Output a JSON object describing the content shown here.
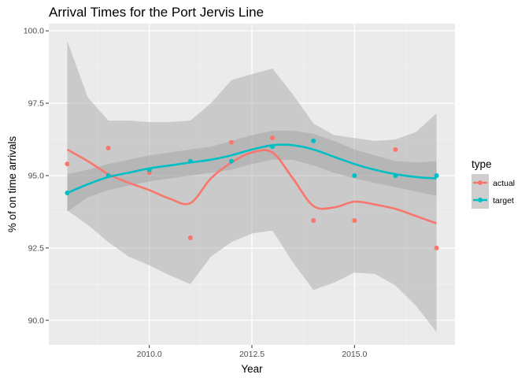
{
  "chart_data": {
    "type": "scatter",
    "title": "Arrival Times for the Port Jervis Line",
    "xlabel": "Year",
    "ylabel": "% of on time arrivals",
    "xlim": [
      2007.55,
      2017.45
    ],
    "ylim": [
      89.15,
      100.25
    ],
    "x_ticks": [
      2010,
      2012.5,
      2015
    ],
    "x_tick_labels": [
      "2010.0",
      "2012.5",
      "2015.0"
    ],
    "y_ticks": [
      90,
      92.5,
      95,
      97.5,
      100
    ],
    "y_tick_labels": [
      "90.0",
      "92.5",
      "95.0",
      "97.5",
      "100.0"
    ],
    "grid": true,
    "legend": {
      "title": "type",
      "position": "right"
    },
    "series": [
      {
        "name": "actual",
        "color": "#F8766D",
        "points": {
          "x": [
            2008,
            2009,
            2010,
            2011,
            2012,
            2013,
            2014,
            2015,
            2016,
            2017
          ],
          "y": [
            95.4,
            95.95,
            95.1,
            92.85,
            96.15,
            96.3,
            93.45,
            93.45,
            95.9,
            92.5
          ]
        },
        "smooth": {
          "x": [
            2008,
            2008.5,
            2009,
            2009.5,
            2010,
            2010.5,
            2011,
            2011.5,
            2012,
            2012.5,
            2013,
            2013.5,
            2014,
            2014.5,
            2015,
            2015.5,
            2016,
            2016.5,
            2017
          ],
          "y": [
            95.9,
            95.5,
            95.05,
            94.75,
            94.5,
            94.2,
            94.05,
            94.9,
            95.45,
            95.8,
            95.8,
            94.9,
            93.95,
            93.9,
            94.1,
            94.0,
            93.85,
            93.6,
            93.35
          ],
          "lower": [
            93.8,
            93.3,
            92.7,
            92.2,
            91.9,
            91.55,
            91.25,
            92.2,
            92.7,
            93.0,
            93.1,
            92.0,
            91.05,
            91.3,
            91.65,
            91.6,
            91.2,
            90.5,
            89.6
          ],
          "upper": [
            99.65,
            97.7,
            96.9,
            96.9,
            96.85,
            96.85,
            96.9,
            97.5,
            98.3,
            98.5,
            98.7,
            97.8,
            96.8,
            96.4,
            96.3,
            96.2,
            96.25,
            96.5,
            97.15
          ]
        }
      },
      {
        "name": "target",
        "color": "#00BFC4",
        "points": {
          "x": [
            2008,
            2009,
            2010,
            2011,
            2012,
            2013,
            2014,
            2015,
            2016,
            2017
          ],
          "y": [
            94.4,
            95.0,
            95.2,
            95.5,
            95.5,
            96.0,
            96.2,
            95.0,
            95.0,
            95.0
          ]
        },
        "smooth": {
          "x": [
            2008,
            2008.5,
            2009,
            2009.5,
            2010,
            2010.5,
            2011,
            2011.5,
            2012,
            2012.5,
            2013,
            2013.5,
            2014,
            2014.5,
            2015,
            2015.5,
            2016,
            2016.5,
            2017
          ],
          "y": [
            94.4,
            94.7,
            94.95,
            95.1,
            95.25,
            95.35,
            95.45,
            95.55,
            95.7,
            95.9,
            96.05,
            96.05,
            95.9,
            95.65,
            95.4,
            95.2,
            95.05,
            94.95,
            94.9
          ],
          "lower": [
            93.75,
            94.25,
            94.5,
            94.65,
            94.8,
            94.9,
            95.0,
            95.1,
            95.2,
            95.4,
            95.55,
            95.55,
            95.35,
            95.1,
            94.9,
            94.75,
            94.6,
            94.45,
            94.3
          ],
          "upper": [
            95.05,
            95.2,
            95.4,
            95.55,
            95.7,
            95.8,
            95.9,
            96.0,
            96.2,
            96.4,
            96.55,
            96.55,
            96.45,
            96.2,
            95.9,
            95.7,
            95.5,
            95.45,
            95.5
          ]
        }
      }
    ]
  }
}
